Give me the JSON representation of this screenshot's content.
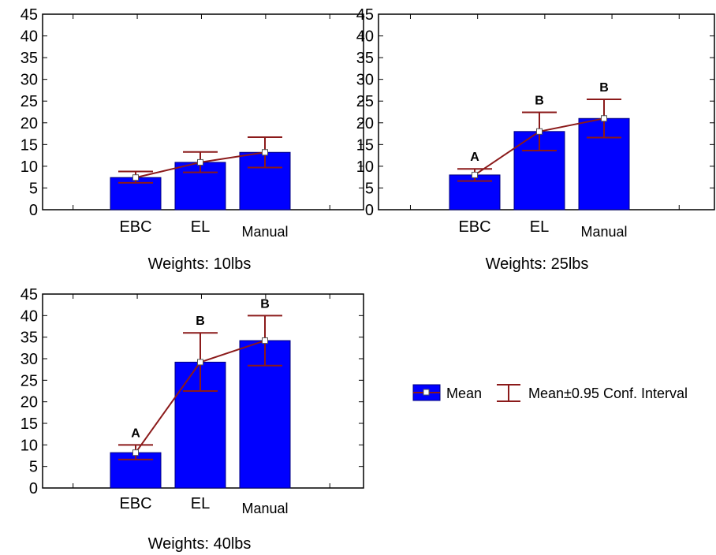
{
  "chart_data": [
    {
      "type": "bar",
      "title": "Weights: 10lbs",
      "categories": [
        "EBC",
        "EL",
        "Manual"
      ],
      "values": [
        7.4,
        10.9,
        13.2
      ],
      "ci_low": [
        6.2,
        8.6,
        9.7
      ],
      "ci_high": [
        8.8,
        13.3,
        16.7
      ],
      "group_labels": [
        "",
        "",
        ""
      ],
      "ylim": [
        0,
        45
      ],
      "yticks": [
        "0",
        "5",
        "10",
        "15",
        "20",
        "25",
        "30",
        "35",
        "40",
        "45"
      ]
    },
    {
      "type": "bar",
      "title": "Weights: 25lbs",
      "categories": [
        "EBC",
        "EL",
        "Manual"
      ],
      "values": [
        8.0,
        18.0,
        21.0
      ],
      "ci_low": [
        6.6,
        13.6,
        16.6
      ],
      "ci_high": [
        9.4,
        22.4,
        25.4
      ],
      "group_labels": [
        "A",
        "B",
        "B"
      ],
      "ylim": [
        0,
        45
      ],
      "yticks": [
        "0",
        "5",
        "10",
        "15",
        "20",
        "25",
        "30",
        "35",
        "40",
        "45"
      ]
    },
    {
      "type": "bar",
      "title": "Weights: 40lbs",
      "categories": [
        "EBC",
        "EL",
        "Manual"
      ],
      "values": [
        8.2,
        29.2,
        34.2
      ],
      "ci_low": [
        6.6,
        22.5,
        28.4
      ],
      "ci_high": [
        10.0,
        36.0,
        40.0
      ],
      "group_labels": [
        "A",
        "B",
        "B"
      ],
      "ylim": [
        0,
        45
      ],
      "yticks": [
        "0",
        "5",
        "10",
        "15",
        "20",
        "25",
        "30",
        "35",
        "40",
        "45"
      ]
    }
  ],
  "legend": {
    "mean_label": "Mean",
    "ci_label": "Mean±0.95 Conf. Interval"
  },
  "colors": {
    "bar": "#0000ff",
    "bar_edge": "#000080",
    "ci_line": "#8b1a1a",
    "axis": "#000000"
  }
}
